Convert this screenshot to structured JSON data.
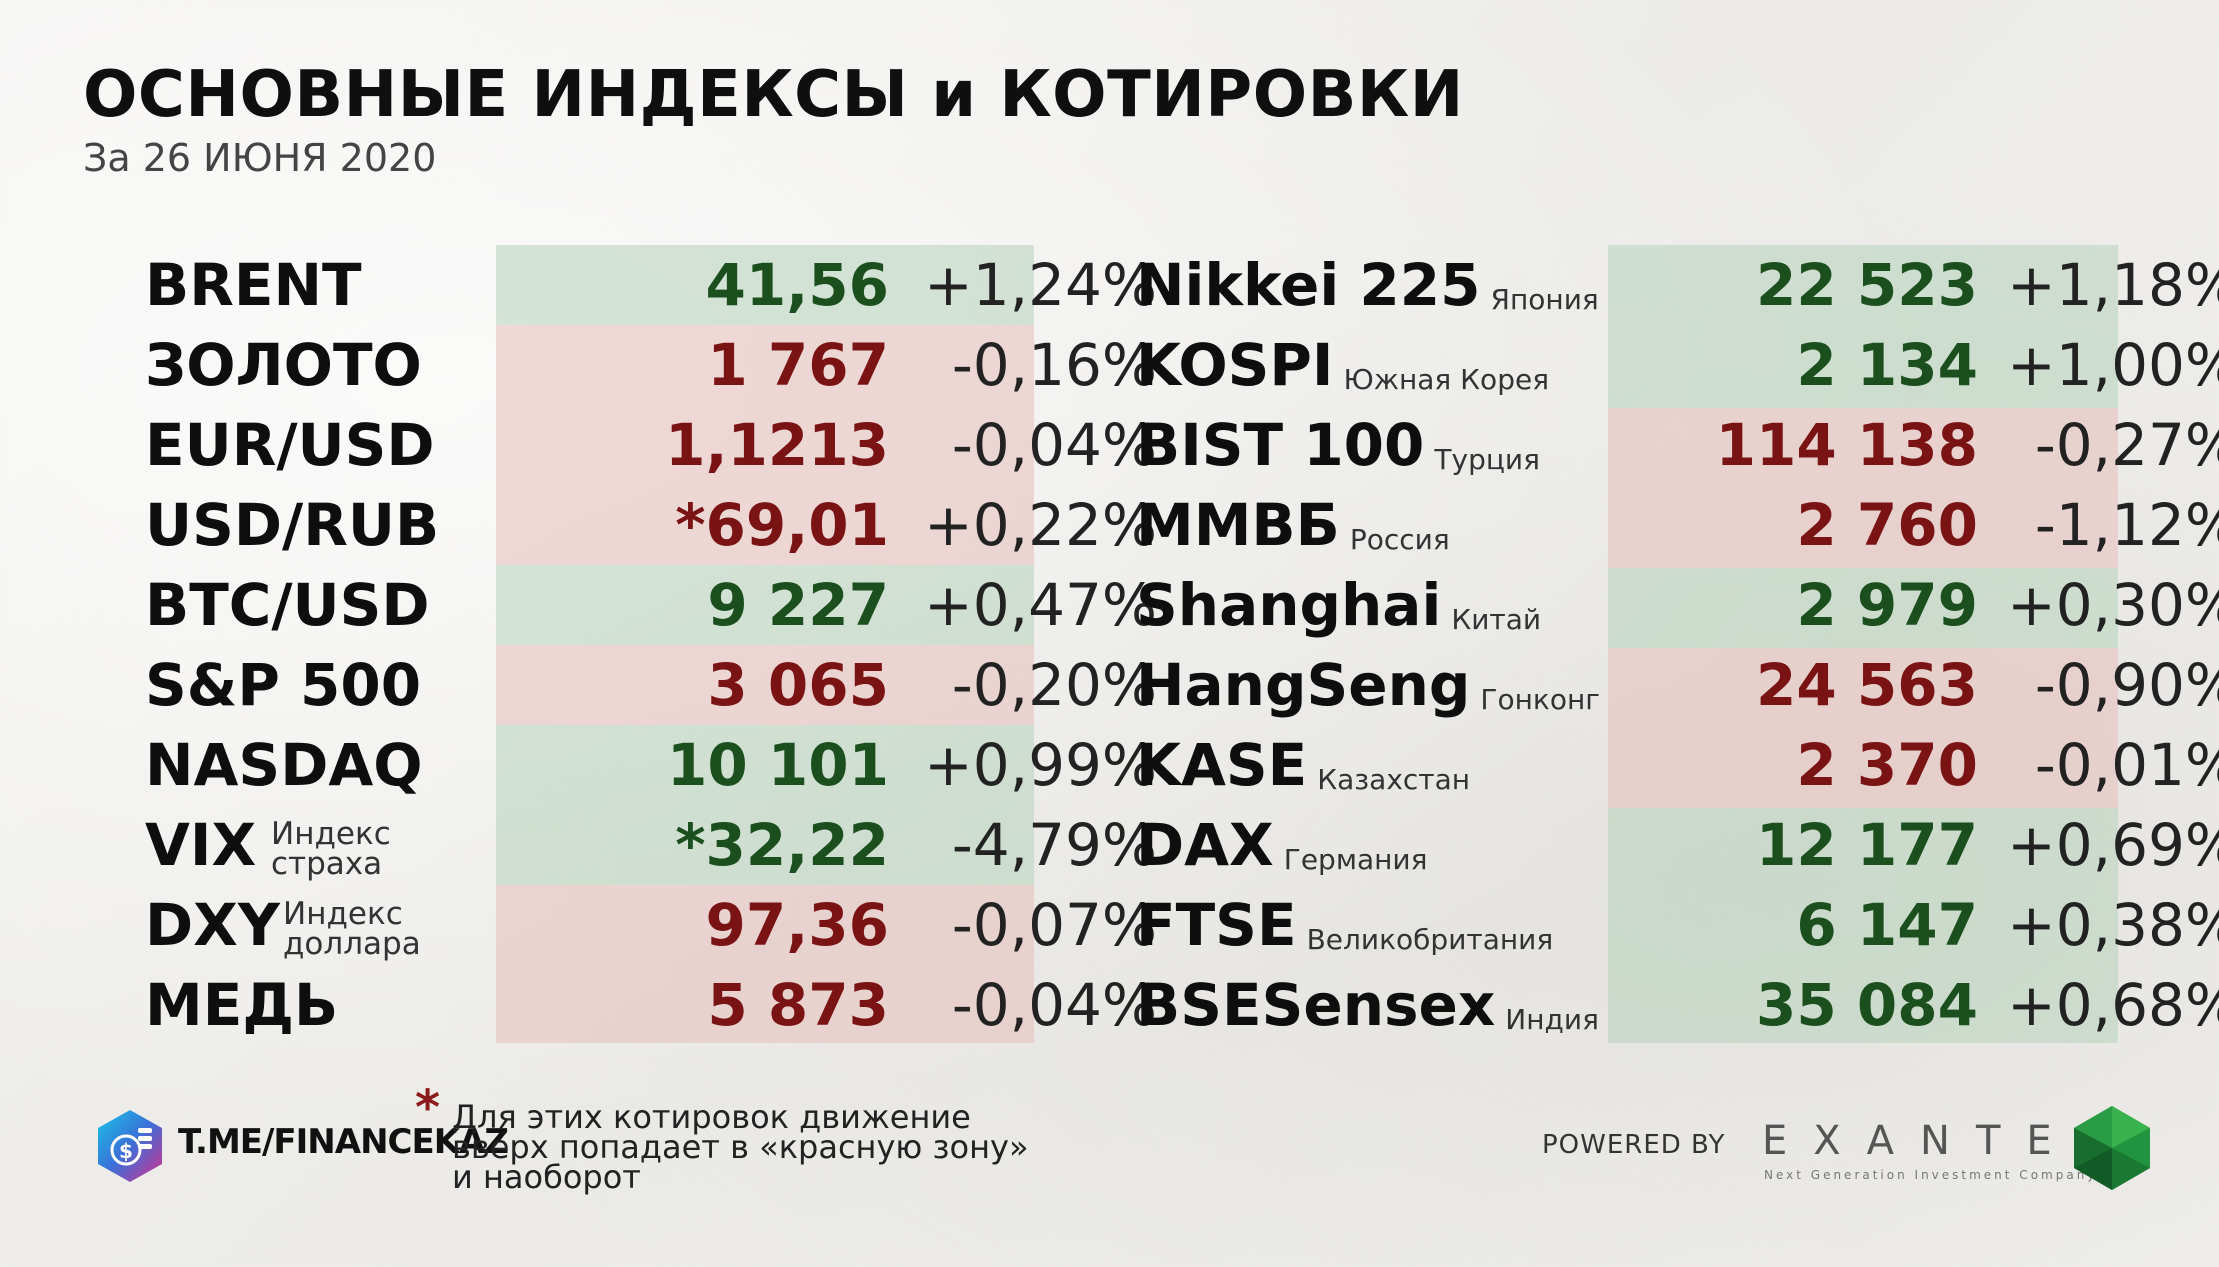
{
  "header": {
    "title": "ОСНОВНЫЕ ИНДЕКСЫ и КОТИРОВКИ",
    "subtitle": "За 26 ИЮНЯ 2020"
  },
  "left": [
    {
      "name": "BRENT",
      "value": "41,56",
      "change": "+1,24%",
      "trend": "up"
    },
    {
      "name": "ЗОЛОТО",
      "value": "1 767",
      "change": "-0,16%",
      "trend": "down"
    },
    {
      "name": "EUR/USD",
      "value": "1,1213",
      "change": "-0,04%",
      "trend": "down"
    },
    {
      "name": "USD/RUB",
      "value": "*69,01",
      "change": "+0,22%",
      "trend": "down"
    },
    {
      "name": "BTC/USD",
      "value": "9 227",
      "change": "+0,47%",
      "trend": "up"
    },
    {
      "name": "S&P 500",
      "value": "3 065",
      "change": "-0,20%",
      "trend": "down"
    },
    {
      "name": "NASDAQ",
      "value": "10 101",
      "change": "+0,99%",
      "trend": "up"
    },
    {
      "name": "VIX",
      "sub1": "Индекс",
      "sub2": "страха",
      "value": "*32,22",
      "change": "-4,79%",
      "trend": "up"
    },
    {
      "name": "DXY",
      "sub1": "Индекс",
      "sub2": "доллара",
      "value": "97,36",
      "change": "-0,07%",
      "trend": "down"
    },
    {
      "name": "МЕДЬ",
      "value": "5 873",
      "change": "-0,04%",
      "trend": "down"
    }
  ],
  "right": [
    {
      "name": "Nikkei 225",
      "country": "Япония",
      "value": "22 523",
      "change": "+1,18%",
      "trend": "up"
    },
    {
      "name": "KOSPI",
      "country": "Южная Корея",
      "value": "2 134",
      "change": "+1,00%",
      "trend": "up"
    },
    {
      "name": "BIST 100",
      "country": "Турция",
      "value": "114 138",
      "change": "-0,27%",
      "trend": "down"
    },
    {
      "name": "ММВБ",
      "country": "Россия",
      "value": "2 760",
      "change": "-1,12%",
      "trend": "down"
    },
    {
      "name": "Shanghai",
      "country": "Китай",
      "value": "2 979",
      "change": "+0,30%",
      "trend": "up"
    },
    {
      "name": "HangSeng",
      "country": "Гонконг",
      "value": "24 563",
      "change": "-0,90%",
      "trend": "down"
    },
    {
      "name": "KASE",
      "country": "Казахстан",
      "value": "2 370",
      "change": "-0,01%",
      "trend": "down"
    },
    {
      "name": "DAX",
      "country": "Германия",
      "value": "12 177",
      "change": "+0,69%",
      "trend": "up"
    },
    {
      "name": "FTSE",
      "country": "Великобритания",
      "value": "6 147",
      "change": "+0,38%",
      "trend": "up"
    },
    {
      "name": "BSESensex",
      "country": "Индия",
      "value": "35 084",
      "change": "+0,68%",
      "trend": "up"
    }
  ],
  "footer": {
    "handle": "T.ME/FINANCEKAZ",
    "note_star": "*",
    "note_lines": [
      "Для этих котировок движение",
      "вверх попадает в «красную зону»",
      "и наоборот"
    ],
    "powered_by": "POWERED BY",
    "brand": "EXANTE",
    "brand_tagline": "Next Generation Investment Company"
  },
  "colors": {
    "up_text": "#1b4f1d",
    "down_text": "#7a1414",
    "up_bg": "#b4d2b9",
    "down_bg": "#e6beb9",
    "note_star": "#8b1a1a"
  },
  "icons": [
    "finance-logo-icon",
    "exante-gem-icon"
  ]
}
